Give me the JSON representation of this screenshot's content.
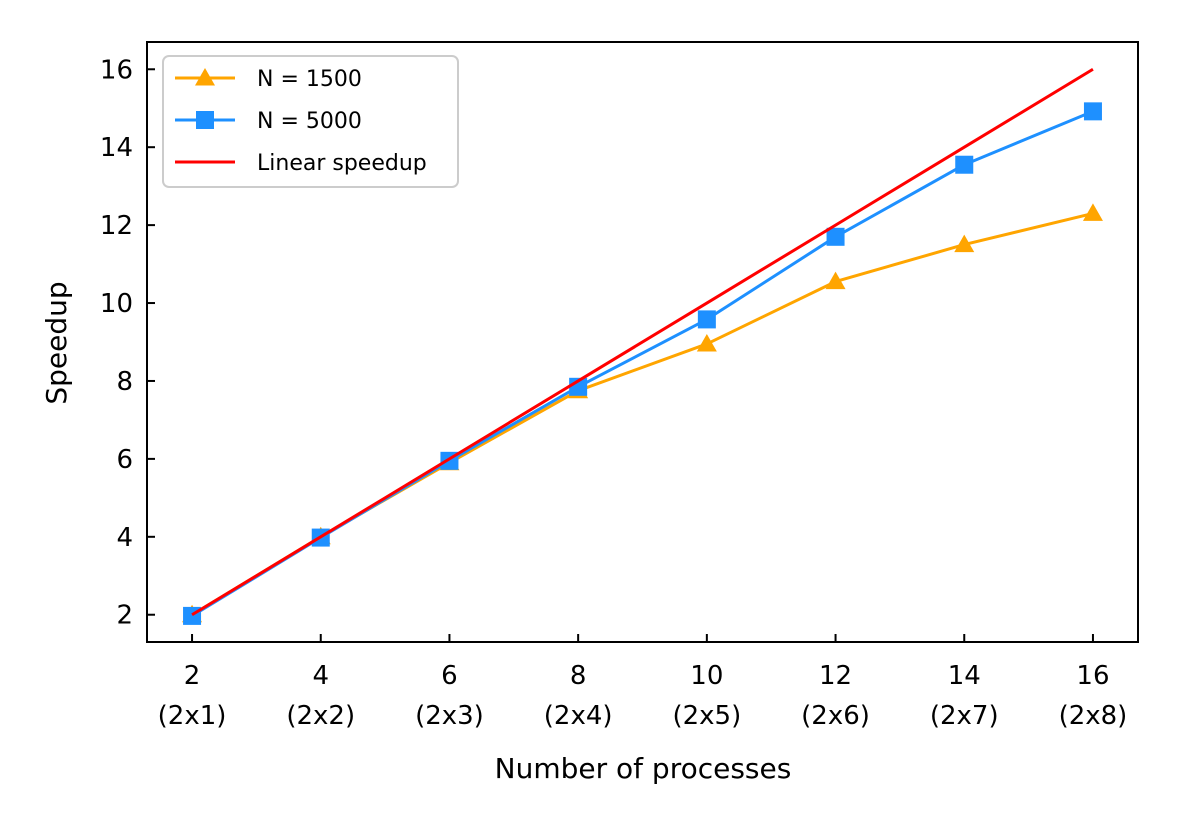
{
  "chart_data": {
    "type": "line",
    "xlabel": "Number of processes",
    "ylabel": "Speedup",
    "x": [
      2,
      4,
      6,
      8,
      10,
      12,
      14,
      16
    ],
    "x_tick_labels": [
      "2",
      "4",
      "6",
      "8",
      "10",
      "12",
      "14",
      "16"
    ],
    "x_tick_sublabels": [
      "(2x1)",
      "(2x2)",
      "(2x3)",
      "(2x4)",
      "(2x5)",
      "(2x6)",
      "(2x7)",
      "(2x8)"
    ],
    "y_ticks": [
      2,
      4,
      6,
      8,
      10,
      12,
      14,
      16
    ],
    "y_tick_labels": [
      "2",
      "4",
      "6",
      "8",
      "10",
      "12",
      "14",
      "16"
    ],
    "xlim": [
      1.3,
      16.7
    ],
    "ylim": [
      1.3,
      16.7
    ],
    "grid": false,
    "legend_position": "top-left",
    "series": [
      {
        "name": "N = 1500",
        "color": "#FFA500",
        "marker": "triangle",
        "values": [
          2.0,
          4.0,
          5.9,
          7.75,
          8.95,
          10.55,
          11.5,
          12.3
        ]
      },
      {
        "name": "N = 5000",
        "color": "#1E90FF",
        "marker": "square",
        "values": [
          1.97,
          3.98,
          5.95,
          7.85,
          9.58,
          11.7,
          13.55,
          14.92
        ]
      },
      {
        "name": "Linear speedup",
        "color": "#FF0000",
        "marker": "none",
        "values": [
          2,
          4,
          6,
          8,
          10,
          12,
          14,
          16
        ]
      }
    ]
  }
}
